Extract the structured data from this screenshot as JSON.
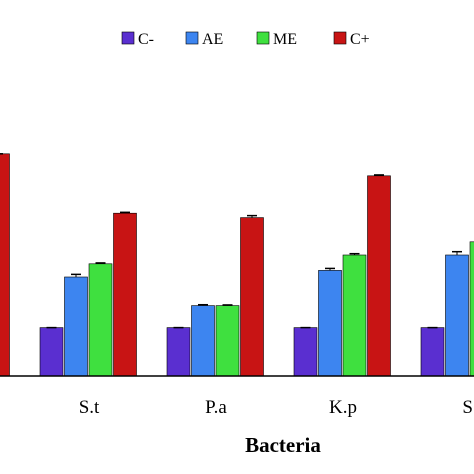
{
  "chart_data": {
    "type": "bar",
    "xlabel": "Bacteria",
    "ylabel": "",
    "ylim": [
      0,
      100
    ],
    "legend_position": "top",
    "grid": false,
    "error_bars": true,
    "categories": [
      "",
      "S.t",
      "P.a",
      "K.p",
      "S."
    ],
    "series": [
      {
        "name": "C-",
        "color": "#5a2fd0",
        "values": [
          null,
          22,
          22,
          22,
          22
        ],
        "errors": [
          null,
          0,
          0,
          0,
          0
        ]
      },
      {
        "name": "AE",
        "color": "#3d85f0",
        "values": [
          null,
          45,
          32,
          48,
          55
        ],
        "errors": [
          null,
          1.2,
          0.4,
          0.9,
          1.5
        ]
      },
      {
        "name": "ME",
        "color": "#3fe03f",
        "values": [
          null,
          51,
          32,
          55,
          61
        ],
        "errors": [
          null,
          0.4,
          0.3,
          0.6,
          0.5
        ]
      },
      {
        "name": "C+",
        "color": "#c81414",
        "values": [
          101,
          74,
          72,
          91,
          null
        ],
        "errors": [
          0,
          0.4,
          0.9,
          0.4,
          null
        ]
      }
    ]
  }
}
